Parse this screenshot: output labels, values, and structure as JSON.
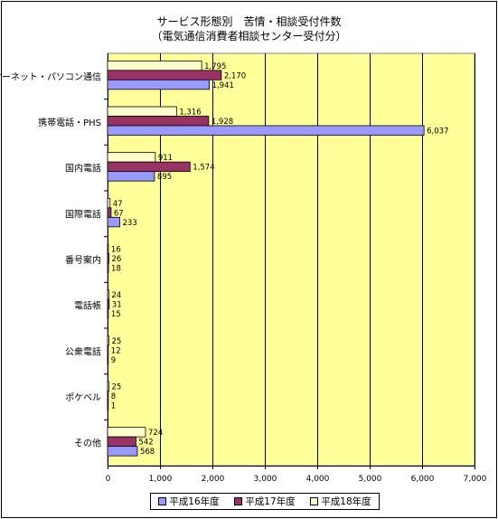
{
  "chart_data": {
    "type": "bar",
    "orientation": "horizontal",
    "title": "サービス形態別　苦情・相談受付件数",
    "subtitle": "（電気通信消費者相談センター受付分）",
    "categories": [
      "インターネット・パソコン通信",
      "携帯電話・PHS",
      "国内電話",
      "国際電話",
      "番号案内",
      "電話帳",
      "公衆電話",
      "ポケベル",
      "その他"
    ],
    "series": [
      {
        "name": "平成18年度",
        "color": "#ffffcc",
        "values": [
          1795,
          1316,
          911,
          47,
          16,
          24,
          25,
          25,
          724
        ],
        "labels": [
          "1,795",
          "1,316",
          "911",
          "47",
          "16",
          "24",
          "25",
          "25",
          "724"
        ]
      },
      {
        "name": "平成17年度",
        "color": "#993366",
        "values": [
          2170,
          1928,
          1574,
          67,
          26,
          31,
          12,
          8,
          542
        ],
        "labels": [
          "2,170",
          "1,928",
          "1,574",
          "67",
          "26",
          "31",
          "12",
          "8",
          "542"
        ]
      },
      {
        "name": "平成16年度",
        "color": "#9999ff",
        "values": [
          1941,
          6037,
          895,
          233,
          18,
          15,
          9,
          1,
          568
        ],
        "labels": [
          "1,941",
          "6,037",
          "895",
          "233",
          "18",
          "15",
          "9",
          "1",
          "568"
        ]
      }
    ],
    "xlim": [
      0,
      7000
    ],
    "xticks": [
      "0",
      "1,000",
      "2,000",
      "3,000",
      "4,000",
      "5,000",
      "6,000",
      "7,000"
    ],
    "grid": true,
    "plot_background": "#ffff99",
    "legend_position": "bottom",
    "legend": [
      "平成16年度",
      "平成17年度",
      "平成18年度"
    ]
  }
}
